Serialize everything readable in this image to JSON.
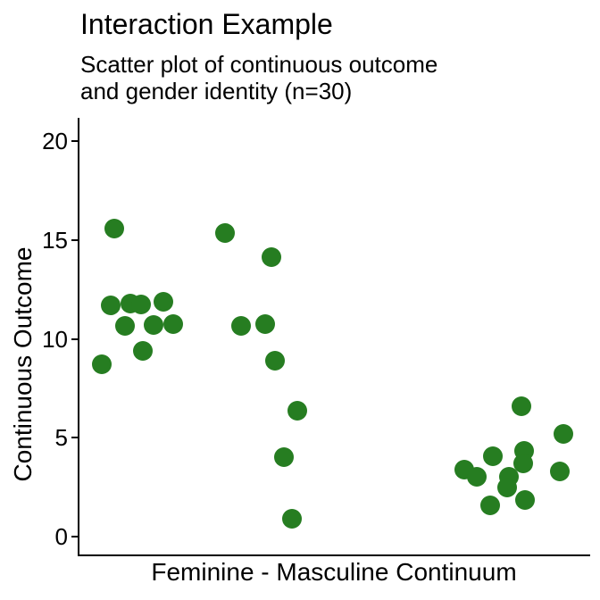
{
  "chart_data": {
    "type": "scatter",
    "title": "Interaction Example",
    "subtitle_lines": [
      "Scatter plot of continuous outcome",
      "and gender identity (n=30)"
    ],
    "xlabel": "Feminine - Masculine Continuum",
    "ylabel": "Continuous Outcome",
    "n": 30,
    "ylim": [
      0,
      20
    ],
    "yticks": [
      0,
      5,
      10,
      15,
      20
    ],
    "x_scale_note": "x axis shows no tick marks or numeric labels; point x values stored as relative position 0-1 across the panel",
    "point_color": "#267d21",
    "axis_color": "#000000",
    "background_color": "#ffffff",
    "grid": "off",
    "legend": "none",
    "points": [
      {
        "x": 0.07,
        "y": 15.6
      },
      {
        "x": 0.063,
        "y": 11.7
      },
      {
        "x": 0.101,
        "y": 11.8
      },
      {
        "x": 0.122,
        "y": 11.75
      },
      {
        "x": 0.166,
        "y": 11.9
      },
      {
        "x": 0.091,
        "y": 10.65
      },
      {
        "x": 0.147,
        "y": 10.7
      },
      {
        "x": 0.185,
        "y": 10.75
      },
      {
        "x": 0.126,
        "y": 9.4
      },
      {
        "x": 0.045,
        "y": 8.7
      },
      {
        "x": 0.287,
        "y": 15.35
      },
      {
        "x": 0.378,
        "y": 14.15
      },
      {
        "x": 0.318,
        "y": 10.65
      },
      {
        "x": 0.365,
        "y": 10.75
      },
      {
        "x": 0.385,
        "y": 8.9
      },
      {
        "x": 0.428,
        "y": 6.35
      },
      {
        "x": 0.402,
        "y": 4.0
      },
      {
        "x": 0.418,
        "y": 0.9
      },
      {
        "x": 0.867,
        "y": 6.6
      },
      {
        "x": 0.949,
        "y": 5.2
      },
      {
        "x": 0.811,
        "y": 4.05
      },
      {
        "x": 0.872,
        "y": 4.35
      },
      {
        "x": 0.871,
        "y": 3.7
      },
      {
        "x": 0.755,
        "y": 3.4
      },
      {
        "x": 0.78,
        "y": 3.05
      },
      {
        "x": 0.942,
        "y": 3.3
      },
      {
        "x": 0.843,
        "y": 3.05
      },
      {
        "x": 0.839,
        "y": 2.5
      },
      {
        "x": 0.874,
        "y": 1.85
      },
      {
        "x": 0.806,
        "y": 1.6
      }
    ]
  }
}
